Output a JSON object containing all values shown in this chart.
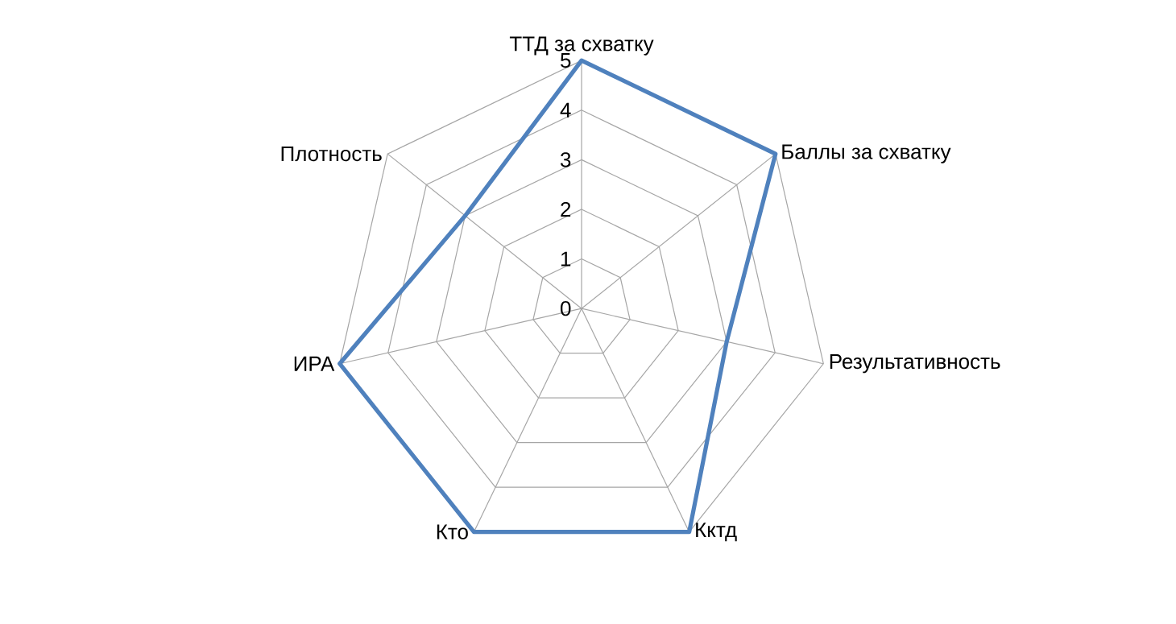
{
  "chart_data": {
    "type": "radar",
    "categories": [
      "ТТД за схватку",
      "Баллы за схватку",
      "Результативность",
      "Кктд",
      "Кто",
      "ИРА",
      "Плотность"
    ],
    "series": [
      {
        "color": "#4f81bd",
        "values": [
          5,
          5,
          3,
          5,
          5,
          5,
          3
        ]
      }
    ],
    "ylim": [
      0,
      5
    ],
    "yticks": [
      0,
      1,
      2,
      3,
      4,
      5
    ],
    "grid": true
  }
}
